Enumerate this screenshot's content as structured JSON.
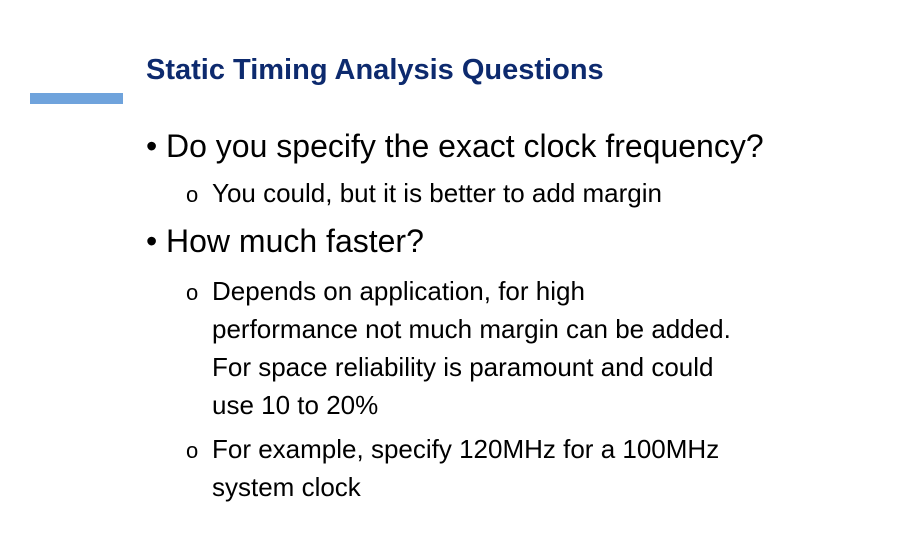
{
  "slide": {
    "title": "Static Timing Analysis Questions",
    "title_color": "#0d2a6e",
    "accent_color": "#6fa3dc"
  },
  "bullets": [
    {
      "text": "Do you specify the exact clock frequency?",
      "sub": [
        {
          "lines": [
            "You could, but it is better to add margin"
          ]
        }
      ]
    },
    {
      "text": "How much faster?",
      "sub": [
        {
          "lines": [
            "Depends on application, for high",
            "performance not much margin can be added.",
            "For space reliability is paramount and could",
            "use 10 to 20%"
          ]
        },
        {
          "lines": [
            "For example, specify 120MHz for a 100MHz",
            "system clock"
          ]
        }
      ]
    }
  ],
  "markers": {
    "level1": "•",
    "level2": "o"
  }
}
